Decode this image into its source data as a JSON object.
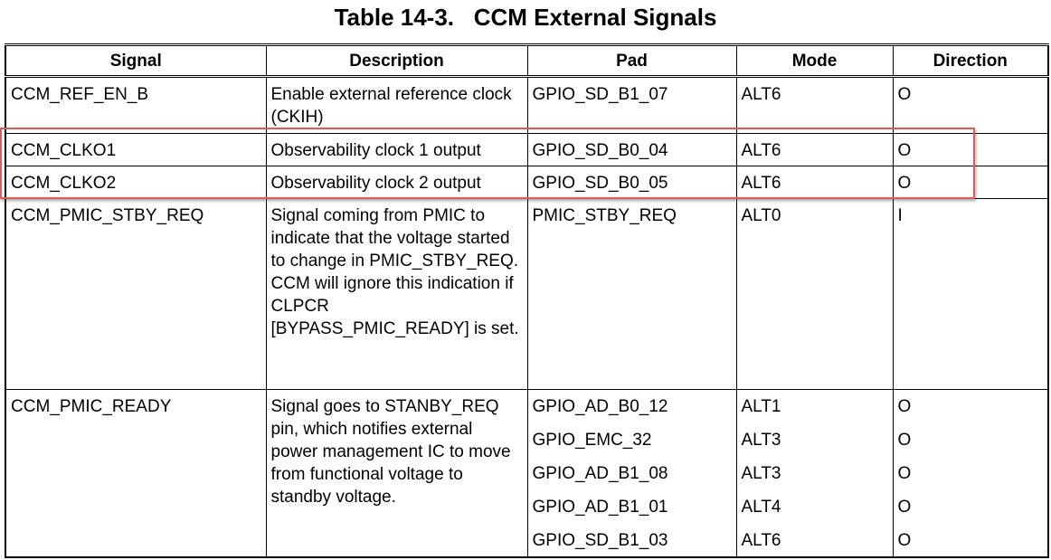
{
  "title": "Table 14-3.   CCM External Signals",
  "table": {
    "headers": [
      "Signal",
      "Description",
      "Pad",
      "Mode",
      "Direction"
    ],
    "rows": [
      {
        "signal": "CCM_REF_EN_B",
        "description": "Enable external reference clock (CKIH)",
        "pads": [
          {
            "pad": "GPIO_SD_B1_07",
            "mode": "ALT6",
            "direction": "O"
          }
        ]
      },
      {
        "signal": "CCM_CLKO1",
        "description": "Observability clock 1 output",
        "pads": [
          {
            "pad": "GPIO_SD_B0_04",
            "mode": "ALT6",
            "direction": "O"
          }
        ]
      },
      {
        "signal": "CCM_CLKO2",
        "description": "Observability clock 2 output",
        "pads": [
          {
            "pad": "GPIO_SD_B0_05",
            "mode": "ALT6",
            "direction": "O"
          }
        ]
      },
      {
        "signal": "CCM_PMIC_STBY_REQ",
        "description": "Signal coming from PMIC to indicate that the voltage started to change in PMIC_STBY_REQ. CCM will ignore this indication if CLPCR [BYPASS_PMIC_READY] is set.",
        "pads": [
          {
            "pad": "PMIC_STBY_REQ",
            "mode": "ALT0",
            "direction": "I"
          }
        ]
      },
      {
        "signal": "CCM_PMIC_READY",
        "description": "Signal goes to STANBY_REQ pin, which notifies external power management IC to move from functional voltage to standby voltage.",
        "pads": [
          {
            "pad": "GPIO_AD_B0_12",
            "mode": "ALT1",
            "direction": "O"
          },
          {
            "pad": "GPIO_EMC_32",
            "mode": "ALT3",
            "direction": "O"
          },
          {
            "pad": "GPIO_AD_B1_08",
            "mode": "ALT3",
            "direction": "O"
          },
          {
            "pad": "GPIO_AD_B1_01",
            "mode": "ALT4",
            "direction": "O"
          },
          {
            "pad": "GPIO_SD_B1_03",
            "mode": "ALT6",
            "direction": "O"
          }
        ]
      }
    ]
  }
}
